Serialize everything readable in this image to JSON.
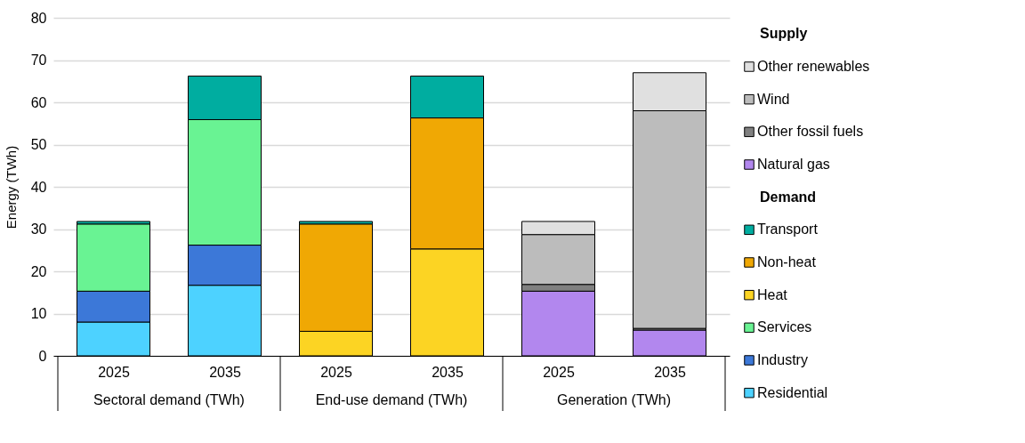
{
  "chart_data": {
    "type": "bar",
    "stacked": true,
    "ylabel": "Energy (TWh)",
    "categories": [
      "2025",
      "2035",
      "2025",
      "2035",
      "2025",
      "2035"
    ],
    "annotations": [
      "Sectoral demand (TWh)",
      "End-use demand (TWh)",
      "Generation (TWh)",
      "Supply",
      "Demand"
    ],
    "ylim": [
      0,
      80
    ],
    "yticks": [
      0,
      10,
      20,
      30,
      40,
      50,
      60,
      70,
      80
    ],
    "grid": "y",
    "legend": "right",
    "series": [
      {
        "name": "Residential",
        "color": "#4dd2ff",
        "values": [
          8.0,
          16.7,
          null,
          null,
          null,
          null
        ]
      },
      {
        "name": "Industry",
        "color": "#3c78d8",
        "values": [
          7.3,
          9.5,
          null,
          null,
          null,
          null
        ]
      },
      {
        "name": "Services",
        "color": "#69f393",
        "values": [
          15.9,
          29.7,
          null,
          null,
          null,
          null
        ]
      },
      {
        "name": "Heat",
        "color": "#fcd423",
        "values": [
          null,
          null,
          5.8,
          25.3,
          null,
          null
        ]
      },
      {
        "name": "Non-heat",
        "color": "#f0a804",
        "values": [
          null,
          null,
          25.4,
          31.0,
          null,
          null
        ]
      },
      {
        "name": "Transport",
        "color": "#00ada0",
        "values": [
          0.6,
          10.3,
          0.6,
          9.9,
          null,
          null
        ]
      },
      {
        "name": "Natural gas",
        "color": "#b287ee",
        "values": [
          null,
          null,
          null,
          null,
          15.3,
          6.1
        ]
      },
      {
        "name": "Other fossil fuels",
        "color": "#808080",
        "values": [
          null,
          null,
          null,
          null,
          1.6,
          0.4
        ]
      },
      {
        "name": "Wind",
        "color": "#bcbcbc",
        "values": [
          null,
          null,
          null,
          null,
          11.8,
          51.5
        ]
      },
      {
        "name": "Other renewables",
        "color": "#e0e0e0",
        "values": [
          null,
          null,
          null,
          null,
          3.1,
          9.0
        ]
      }
    ]
  }
}
